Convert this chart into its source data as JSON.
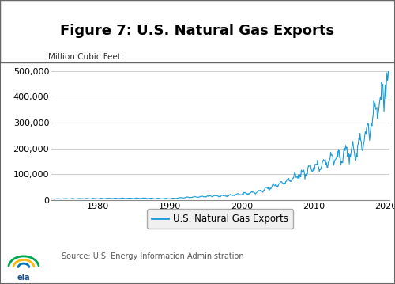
{
  "title": "Figure 7: U.S. Natural Gas Exports",
  "ylabel": "Million Cubic Feet",
  "legend_label": "U.S. Natural Gas Exports",
  "source_text": "Source: U.S. Energy Information Administration",
  "line_color": "#1a9cd8",
  "ylim": [
    0,
    500000
  ],
  "yticks": [
    0,
    100000,
    200000,
    300000,
    400000,
    500000
  ],
  "ytick_labels": [
    "0",
    "100,000",
    "200,000",
    "300,000",
    "400,000",
    "500,000"
  ],
  "xlim_start": 1973.5,
  "xlim_end": 2020.5,
  "xticks": [
    1980,
    1990,
    2000,
    2010,
    2020
  ],
  "title_fontsize": 13,
  "axis_fontsize": 8,
  "legend_fontsize": 8.5,
  "ylabel_fontsize": 7.5
}
